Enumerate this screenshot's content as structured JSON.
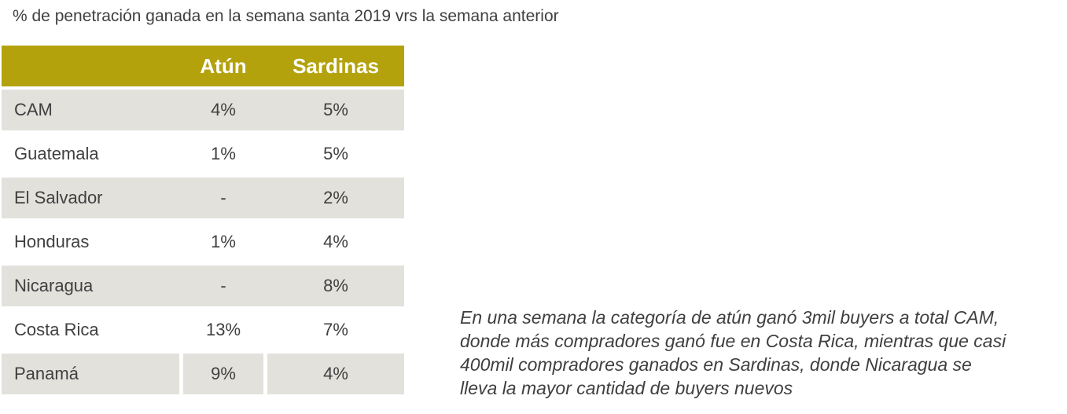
{
  "title": "% de penetración ganada en la semana santa 2019 vrs la semana anterior",
  "table": {
    "header": {
      "country": "",
      "atun": "Atún",
      "sardinas": "Sardinas"
    },
    "rows": [
      {
        "country": "CAM",
        "atun": "4%",
        "sardinas": "5%"
      },
      {
        "country": "Guatemala",
        "atun": "1%",
        "sardinas": "5%"
      },
      {
        "country": "El Salvador",
        "atun": "-",
        "sardinas": "2%"
      },
      {
        "country": "Honduras",
        "atun": "1%",
        "sardinas": "4%"
      },
      {
        "country": "Nicaragua",
        "atun": "-",
        "sardinas": "8%"
      },
      {
        "country": "Costa Rica",
        "atun": "13%",
        "sardinas": "7%"
      },
      {
        "country": "Panamá",
        "atun": "9%",
        "sardinas": "4%"
      }
    ]
  },
  "annotation": {
    "lines": [
      "En una semana la categoría de atún ganó 3mil buyers a total CAM,",
      "donde más compradores ganó fue en Costa Rica, mientras que casi",
      "400mil compradores ganados en Sardinas, donde Nicaragua se",
      "lleva la mayor cantidad de buyers nuevos"
    ]
  },
  "colors": {
    "header_bg": "#B3A20C",
    "header_text": "#FFFFFF",
    "row_alt_bg": "#E2E1DC",
    "row_bg": "#FFFFFF",
    "body_text": "#404040"
  },
  "chart_data": {
    "type": "table",
    "title": "% de penetración ganada en la semana santa 2019 vrs la semana anterior",
    "columns": [
      "",
      "Atún",
      "Sardinas"
    ],
    "rows": [
      [
        "CAM",
        "4%",
        "5%"
      ],
      [
        "Guatemala",
        "1%",
        "5%"
      ],
      [
        "El Salvador",
        "-",
        "2%"
      ],
      [
        "Honduras",
        "1%",
        "4%"
      ],
      [
        "Nicaragua",
        "-",
        "8%"
      ],
      [
        "Costa Rica",
        "13%",
        "7%"
      ],
      [
        "Panamá",
        "9%",
        "4%"
      ]
    ],
    "annotation": "En una semana la categoría de atún ganó 3mil buyers a total CAM, donde más compradores ganó fue en Costa Rica, mientras que casi 400mil compradores ganados en Sardinas, donde Nicaragua se lleva la mayor cantidad de buyers nuevos"
  }
}
